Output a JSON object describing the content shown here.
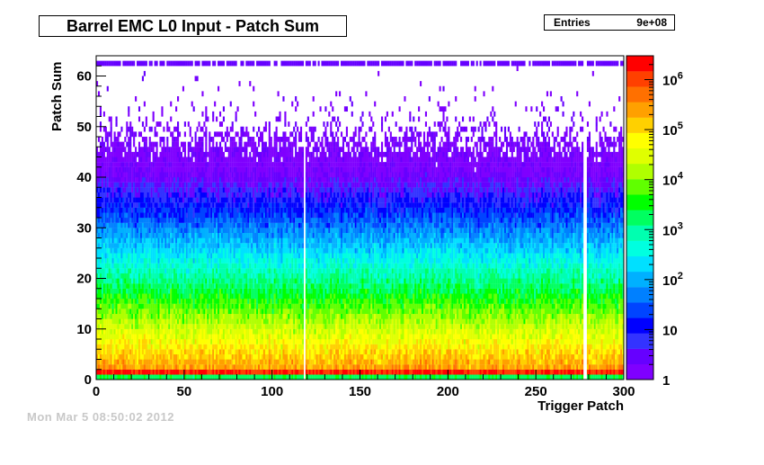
{
  "chart_data": {
    "type": "heatmap",
    "title": "Barrel EMC L0 Input - Patch Sum",
    "xlabel": "Trigger Patch",
    "ylabel": "Patch Sum",
    "xlim": [
      0,
      300
    ],
    "ylim": [
      0,
      64
    ],
    "x_ticks": [
      0,
      50,
      100,
      150,
      200,
      250,
      300
    ],
    "y_ticks": [
      0,
      10,
      20,
      30,
      40,
      50,
      60
    ],
    "z_scale": "log",
    "zlim": [
      1,
      3000000
    ],
    "z_ticks": [
      {
        "value": 1,
        "base": "1",
        "exp": ""
      },
      {
        "value": 10,
        "base": "10",
        "exp": ""
      },
      {
        "value": 100,
        "base": "10",
        "exp": "2"
      },
      {
        "value": 1000,
        "base": "10",
        "exp": "3"
      },
      {
        "value": 10000,
        "base": "10",
        "exp": "4"
      },
      {
        "value": 100000,
        "base": "10",
        "exp": "5"
      },
      {
        "value": 1000000,
        "base": "10",
        "exp": "6"
      }
    ],
    "stats": {
      "label": "Entries",
      "value": "9e+08"
    },
    "empty_patches": [
      118,
      277,
      278
    ],
    "content_summary": {
      "peak_bin_sum": 1,
      "peak_count_approx": 2000000,
      "decay_description": "counts fall from ~1e6 at low sums to ~1 near sum 40-62; overflow row at 62"
    }
  },
  "footer_text": "Mon Mar  5 08:50:02 2012",
  "colors": {
    "palette": [
      "#7f00ff",
      "#6600ff",
      "#3333ff",
      "#0000ff",
      "#0044ff",
      "#0080ff",
      "#00b0ff",
      "#00e0ff",
      "#00ffe0",
      "#00ffb0",
      "#00ff60",
      "#00ff00",
      "#60ff00",
      "#b0ff00",
      "#e0ff00",
      "#ffff00",
      "#ffd000",
      "#ffa000",
      "#ff7000",
      "#ff4000",
      "#ff0000"
    ]
  }
}
